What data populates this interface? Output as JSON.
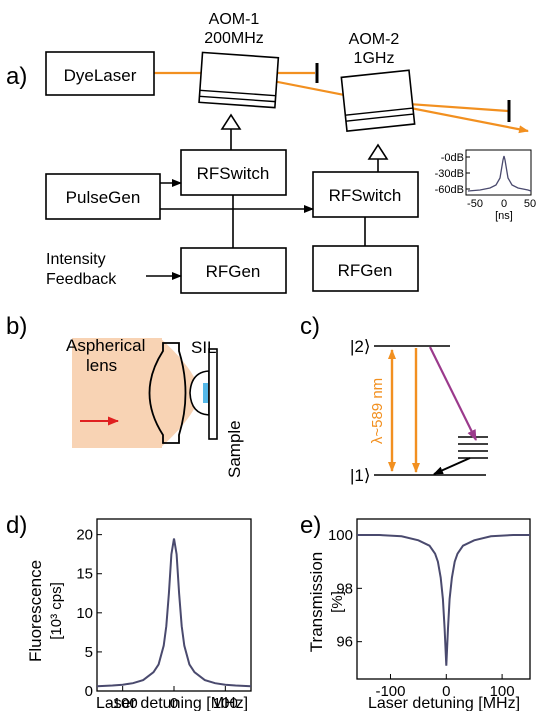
{
  "panel_labels": {
    "a": "a)",
    "b": "b)",
    "c": "c)",
    "d": "d)",
    "e": "e)"
  },
  "panel_a": {
    "boxes": {
      "dye_laser": "DyeLaser",
      "pulse_gen": "PulseGen",
      "rf_switch_1": "RFSwitch",
      "rf_switch_2": "RFSwitch",
      "rf_gen_1": "RFGen",
      "rf_gen_2": "RFGen"
    },
    "aom1": {
      "name": "AOM-1",
      "freq": "200MHz"
    },
    "aom2": {
      "name": "AOM-2",
      "freq": "1GHz"
    },
    "intensity_feedback": [
      "Intensity",
      "Feedback"
    ],
    "colors": {
      "beam": "#f29020",
      "trace": "#4a4a6e"
    },
    "inset": {
      "y_ticks": [
        "-0dB",
        "-30dB",
        "-60dB"
      ],
      "x_ticks": [
        "-50",
        "0",
        "50"
      ],
      "x_unit": "[ns]"
    }
  },
  "panel_b": {
    "aspherical_lens": [
      "Aspherical",
      "lens"
    ],
    "sil": "SIL",
    "sample": "Sample",
    "colors": {
      "beam_fill": "#f8d3b4",
      "arrow": "#e02020",
      "sil_fill": "#55b8e8"
    }
  },
  "panel_c": {
    "level_2": "|2⟩",
    "level_1": "|1⟩",
    "wavelength": "λ~589 nm",
    "colors": {
      "pump": "#f29020",
      "decay": "#9b3a8c"
    }
  },
  "chart_data": [
    {
      "type": "line",
      "panel": "d)",
      "xlabel": "Laser detuning [MHz]",
      "ylabel": [
        "Fluorescence",
        "[10³ cps]"
      ],
      "xlim": [
        -150,
        150
      ],
      "ylim": [
        0,
        22
      ],
      "x_ticks": [
        "-100",
        "0",
        "100"
      ],
      "y_ticks": [
        "0",
        "5",
        "10",
        "15",
        "20"
      ],
      "series": [
        {
          "x": [
            -150,
            -120,
            -100,
            -80,
            -60,
            -40,
            -30,
            -20,
            -15,
            -10,
            -5,
            0,
            5,
            10,
            15,
            20,
            30,
            40,
            60,
            80,
            100,
            120,
            150
          ],
          "values": [
            0.6,
            0.7,
            0.8,
            1.0,
            1.4,
            2.4,
            3.4,
            5.8,
            8.3,
            12.5,
            17.5,
            19.5,
            17.5,
            12.5,
            8.3,
            5.8,
            3.4,
            2.4,
            1.4,
            1.0,
            0.8,
            0.7,
            0.6
          ]
        }
      ]
    },
    {
      "type": "line",
      "panel": "e)",
      "xlabel": "Laser detuning [MHz]",
      "ylabel": [
        "Transmission",
        "[%]"
      ],
      "xlim": [
        -160,
        150
      ],
      "ylim": [
        94.6,
        100.6
      ],
      "x_ticks": [
        "-100",
        "0",
        "100"
      ],
      "y_ticks": [
        "96",
        "98",
        "100"
      ],
      "series": [
        {
          "x": [
            -160,
            -120,
            -80,
            -50,
            -30,
            -20,
            -15,
            -10,
            -6,
            -3,
            0,
            3,
            6,
            10,
            15,
            20,
            30,
            50,
            80,
            120,
            150
          ],
          "values": [
            100.0,
            100.0,
            99.95,
            99.8,
            99.6,
            99.3,
            99.0,
            98.4,
            97.6,
            96.5,
            95.1,
            96.5,
            97.6,
            98.4,
            99.0,
            99.3,
            99.6,
            99.8,
            99.95,
            100.0,
            100.0
          ]
        }
      ]
    }
  ]
}
